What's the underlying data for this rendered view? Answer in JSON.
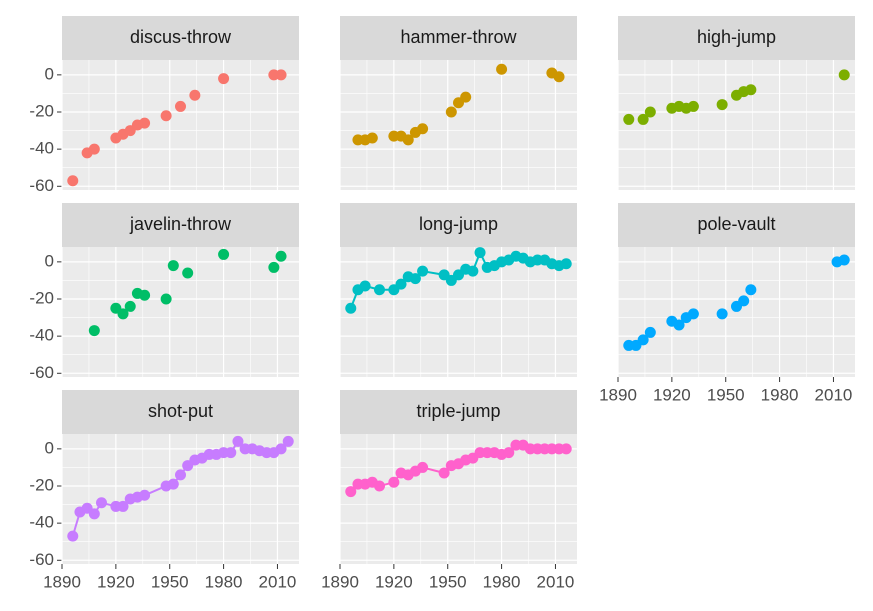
{
  "chart_data": [
    {
      "type": "scatter",
      "title": "discus-throw",
      "color": "#F8766D",
      "line": false,
      "grid": true,
      "x": [
        1896,
        1904,
        1908,
        1920,
        1924,
        1928,
        1932,
        1936,
        1948,
        1956,
        1964,
        1980,
        2008,
        2012
      ],
      "values": [
        -57,
        -42,
        -40,
        -34,
        -32,
        -30,
        -27,
        -26,
        -22,
        -17,
        -11,
        -2,
        0,
        0
      ],
      "xlim": [
        1890,
        2022
      ],
      "ylim": [
        -62,
        8
      ],
      "xticks": [
        1890,
        1920,
        1950,
        1980,
        2010
      ],
      "yticks": [
        -60,
        -40,
        -20,
        0
      ]
    },
    {
      "type": "scatter",
      "title": "hammer-throw",
      "color": "#CD9600",
      "line": false,
      "grid": true,
      "x": [
        1900,
        1904,
        1908,
        1920,
        1924,
        1928,
        1932,
        1936,
        1952,
        1956,
        1960,
        1980,
        2008,
        2012
      ],
      "values": [
        -35,
        -35,
        -34,
        -33,
        -33,
        -35,
        -31,
        -29,
        -20,
        -15,
        -12,
        3,
        1,
        -1
      ],
      "xlim": [
        1890,
        2022
      ],
      "ylim": [
        -62,
        8
      ],
      "xticks": [
        1890,
        1920,
        1950,
        1980,
        2010
      ],
      "yticks": [
        -60,
        -40,
        -20,
        0
      ]
    },
    {
      "type": "scatter",
      "title": "high-jump",
      "color": "#7CAE00",
      "line": false,
      "grid": true,
      "x": [
        1896,
        1904,
        1908,
        1920,
        1924,
        1928,
        1932,
        1948,
        1956,
        1960,
        1964,
        2016
      ],
      "values": [
        -24,
        -24,
        -20,
        -18,
        -17,
        -18,
        -17,
        -16,
        -11,
        -9,
        -8,
        0
      ],
      "xlim": [
        1890,
        2022
      ],
      "ylim": [
        -62,
        8
      ],
      "xticks": [
        1890,
        1920,
        1950,
        1980,
        2010
      ],
      "yticks": [
        -60,
        -40,
        -20,
        0
      ]
    },
    {
      "type": "scatter",
      "title": "javelin-throw",
      "color": "#00BE67",
      "line": false,
      "grid": true,
      "x": [
        1908,
        1920,
        1924,
        1928,
        1932,
        1936,
        1948,
        1952,
        1960,
        1980,
        2008,
        2012
      ],
      "values": [
        -37,
        -25,
        -28,
        -24,
        -17,
        -18,
        -20,
        -2,
        -6,
        4,
        -3,
        3
      ],
      "xlim": [
        1890,
        2022
      ],
      "ylim": [
        -62,
        8
      ],
      "xticks": [
        1890,
        1920,
        1950,
        1980,
        2010
      ],
      "yticks": [
        -60,
        -40,
        -20,
        0
      ]
    },
    {
      "type": "scatter",
      "title": "long-jump",
      "color": "#00BFC4",
      "line": true,
      "grid": true,
      "x": [
        1896,
        1900,
        1904,
        1912,
        1920,
        1924,
        1928,
        1932,
        1936,
        1948,
        1952,
        1956,
        1960,
        1964,
        1968,
        1972,
        1976,
        1980,
        1984,
        1988,
        1992,
        1996,
        2000,
        2004,
        2008,
        2012,
        2016
      ],
      "values": [
        -25,
        -15,
        -13,
        -15,
        -15,
        -12,
        -8,
        -9,
        -5,
        -7,
        -10,
        -7,
        -4,
        -5,
        5,
        -3,
        -2,
        0,
        1,
        3,
        2,
        0,
        1,
        1,
        -1,
        -2,
        -1
      ],
      "xlim": [
        1890,
        2022
      ],
      "ylim": [
        -62,
        8
      ],
      "xticks": [
        1890,
        1920,
        1950,
        1980,
        2010
      ],
      "yticks": [
        -60,
        -40,
        -20,
        0
      ]
    },
    {
      "type": "scatter",
      "title": "pole-vault",
      "color": "#00A9FF",
      "line": false,
      "grid": true,
      "x": [
        1896,
        1900,
        1904,
        1908,
        1920,
        1924,
        1928,
        1932,
        1948,
        1956,
        1960,
        1964,
        2012,
        2016
      ],
      "values": [
        -45,
        -45,
        -42,
        -38,
        -32,
        -34,
        -30,
        -28,
        -28,
        -24,
        -21,
        -15,
        0,
        1
      ],
      "xlim": [
        1890,
        2022
      ],
      "ylim": [
        -62,
        8
      ],
      "xticks": [
        1890,
        1920,
        1950,
        1980,
        2010
      ],
      "yticks": [
        -60,
        -40,
        -20,
        0
      ]
    },
    {
      "type": "scatter",
      "title": "shot-put",
      "color": "#C77CFF",
      "line": true,
      "grid": true,
      "x": [
        1896,
        1900,
        1904,
        1908,
        1912,
        1920,
        1924,
        1928,
        1932,
        1936,
        1948,
        1952,
        1956,
        1960,
        1964,
        1968,
        1972,
        1976,
        1980,
        1984,
        1988,
        1992,
        1996,
        2000,
        2004,
        2008,
        2012,
        2016
      ],
      "values": [
        -47,
        -34,
        -32,
        -35,
        -29,
        -31,
        -31,
        -27,
        -26,
        -25,
        -20,
        -19,
        -14,
        -9,
        -6,
        -5,
        -3,
        -3,
        -2,
        -2,
        4,
        0,
        0,
        -1,
        -2,
        -2,
        0,
        4
      ],
      "xlim": [
        1890,
        2022
      ],
      "ylim": [
        -62,
        8
      ],
      "xticks": [
        1890,
        1920,
        1950,
        1980,
        2010
      ],
      "yticks": [
        -60,
        -40,
        -20,
        0
      ]
    },
    {
      "type": "scatter",
      "title": "triple-jump",
      "color": "#FF61CC",
      "line": true,
      "grid": true,
      "x": [
        1896,
        1900,
        1904,
        1908,
        1912,
        1920,
        1924,
        1928,
        1932,
        1936,
        1948,
        1952,
        1956,
        1960,
        1964,
        1968,
        1972,
        1976,
        1980,
        1984,
        1988,
        1992,
        1996,
        2000,
        2004,
        2008,
        2012,
        2016
      ],
      "values": [
        -23,
        -19,
        -19,
        -18,
        -20,
        -18,
        -13,
        -14,
        -12,
        -10,
        -13,
        -9,
        -8,
        -6,
        -5,
        -2,
        -2,
        -2,
        -3,
        -2,
        2,
        2,
        0,
        0,
        0,
        0,
        0,
        0
      ],
      "xlim": [
        1890,
        2022
      ],
      "ylim": [
        -62,
        8
      ],
      "xticks": [
        1890,
        1920,
        1950,
        1980,
        2010
      ],
      "yticks": [
        -60,
        -40,
        -20,
        0
      ]
    }
  ]
}
